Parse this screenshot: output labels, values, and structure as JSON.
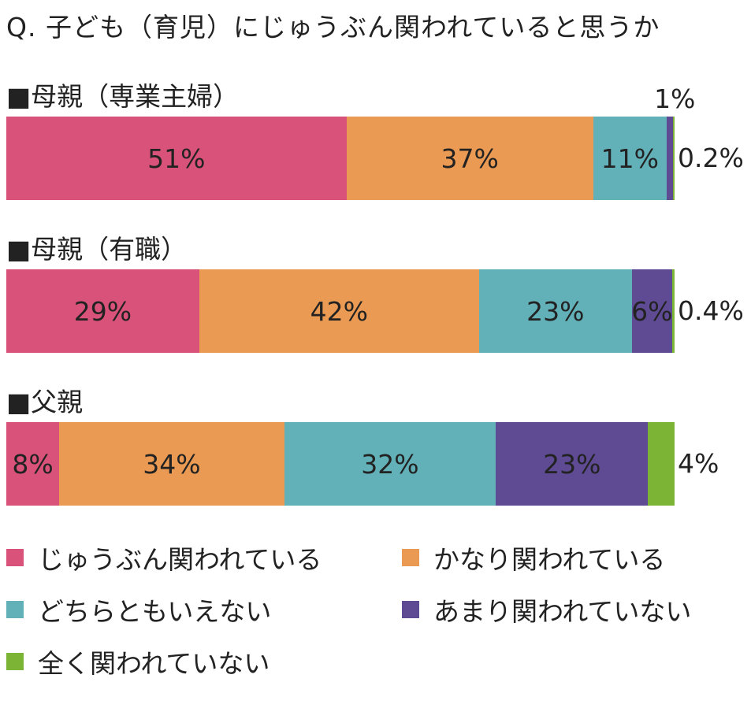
{
  "title": "Q. 子ども（育児）にじゅうぶん関われていると思うか",
  "chart_data": {
    "type": "bar",
    "orientation": "horizontal-stacked-100",
    "title": "Q. 子ども（育児）にじゅうぶん関われていると思うか",
    "categories": [
      "■母親（専業主婦）",
      "■母親（有職）",
      "■父親"
    ],
    "series": [
      {
        "name": "じゅうぶん関われている",
        "color": "#d9527a",
        "values": [
          51,
          29,
          8
        ],
        "labels": [
          "51%",
          "29%",
          "8%"
        ]
      },
      {
        "name": "かなり関われている",
        "color": "#ea9a52",
        "values": [
          37,
          42,
          34
        ],
        "labels": [
          "37%",
          "42%",
          "34%"
        ]
      },
      {
        "name": "どちらともいえない",
        "color": "#62b1b8",
        "values": [
          11,
          23,
          32
        ],
        "labels": [
          "11%",
          "23%",
          "32%"
        ]
      },
      {
        "name": "あまり関われていない",
        "color": "#5e4b94",
        "values": [
          1,
          6,
          23
        ],
        "labels": [
          "1%",
          "6%",
          "23%"
        ]
      },
      {
        "name": "全く関われていない",
        "color": "#7cb535",
        "values": [
          0.2,
          0.4,
          4
        ],
        "labels": [
          "0.2%",
          "0.4%",
          "4%"
        ]
      }
    ],
    "xlim": [
      0,
      100
    ],
    "legend_position": "bottom"
  }
}
